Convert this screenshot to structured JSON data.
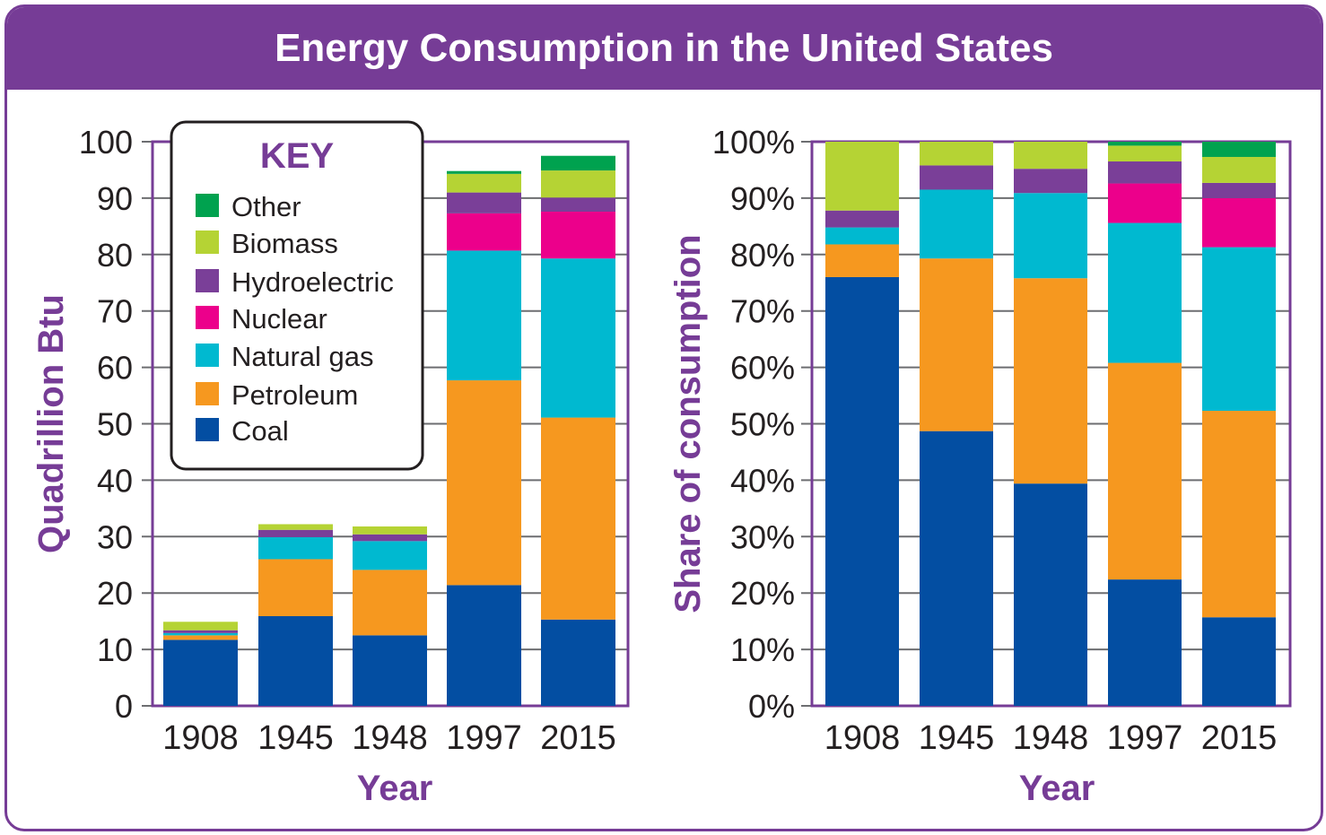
{
  "title": "Energy Consumption in the United States",
  "colors": {
    "frame": "#763c96",
    "purple_text": "#763c96",
    "Coal": "#034ea2",
    "Petroleum": "#f6981f",
    "Natural gas": "#00b9d0",
    "Nuclear": "#ec008b",
    "Hydroelectric": "#7a3f98",
    "Biomass": "#b5d334",
    "Other": "#00a24f",
    "grid": "#6d6e71"
  },
  "legend": {
    "title": "KEY",
    "entries": [
      "Other",
      "Biomass",
      "Hydroelectric",
      "Nuclear",
      "Natural gas",
      "Petroleum",
      "Coal"
    ]
  },
  "chart_data": [
    {
      "type": "bar",
      "stacked": true,
      "ylabel": "Quadrillion Btu",
      "xlabel": "Year",
      "ylim": [
        0,
        100
      ],
      "yticks": [
        "0",
        "10",
        "20",
        "30",
        "40",
        "50",
        "60",
        "70",
        "80",
        "90",
        "100"
      ],
      "categories": [
        "1908",
        "1945",
        "1948",
        "1997",
        "2015"
      ],
      "grid": true,
      "legend_position": "top-left",
      "series": [
        {
          "name": "Coal",
          "values": [
            11.7,
            15.9,
            12.5,
            21.4,
            15.3
          ]
        },
        {
          "name": "Petroleum",
          "values": [
            0.8,
            10.1,
            11.6,
            36.3,
            35.8
          ]
        },
        {
          "name": "Natural gas",
          "values": [
            0.4,
            3.9,
            5.1,
            23.0,
            28.2
          ]
        },
        {
          "name": "Nuclear",
          "values": [
            0.0,
            0.0,
            0.0,
            6.6,
            8.3
          ]
        },
        {
          "name": "Hydroelectric",
          "values": [
            0.5,
            1.3,
            1.2,
            3.7,
            2.5
          ]
        },
        {
          "name": "Biomass",
          "values": [
            1.5,
            1.0,
            1.4,
            3.3,
            4.8
          ]
        },
        {
          "name": "Other",
          "values": [
            0.0,
            0.0,
            0.0,
            0.5,
            2.6
          ]
        }
      ]
    },
    {
      "type": "bar",
      "stacked": true,
      "ylabel": "Share of consumption",
      "xlabel": "Year",
      "ylim": [
        0,
        100
      ],
      "yticks": [
        "0%",
        "10%",
        "20%",
        "30%",
        "40%",
        "50%",
        "60%",
        "70%",
        "80%",
        "90%",
        "100%"
      ],
      "categories": [
        "1908",
        "1945",
        "1948",
        "1997",
        "2015"
      ],
      "grid": true,
      "series": [
        {
          "name": "Coal",
          "values": [
            76,
            48.7,
            39.4,
            22.4,
            15.7
          ]
        },
        {
          "name": "Petroleum",
          "values": [
            5.8,
            30.6,
            36.4,
            38.4,
            36.6
          ]
        },
        {
          "name": "Natural gas",
          "values": [
            3.0,
            12.2,
            15.1,
            24.8,
            29.0
          ]
        },
        {
          "name": "Nuclear",
          "values": [
            0,
            0,
            0,
            7.0,
            8.7
          ]
        },
        {
          "name": "Hydroelectric",
          "values": [
            3.0,
            4.3,
            4.3,
            3.9,
            2.7
          ]
        },
        {
          "name": "Biomass",
          "values": [
            12.2,
            4.2,
            4.8,
            2.8,
            4.6
          ]
        },
        {
          "name": "Other",
          "values": [
            0,
            0,
            0,
            0.7,
            2.7
          ]
        }
      ]
    }
  ]
}
